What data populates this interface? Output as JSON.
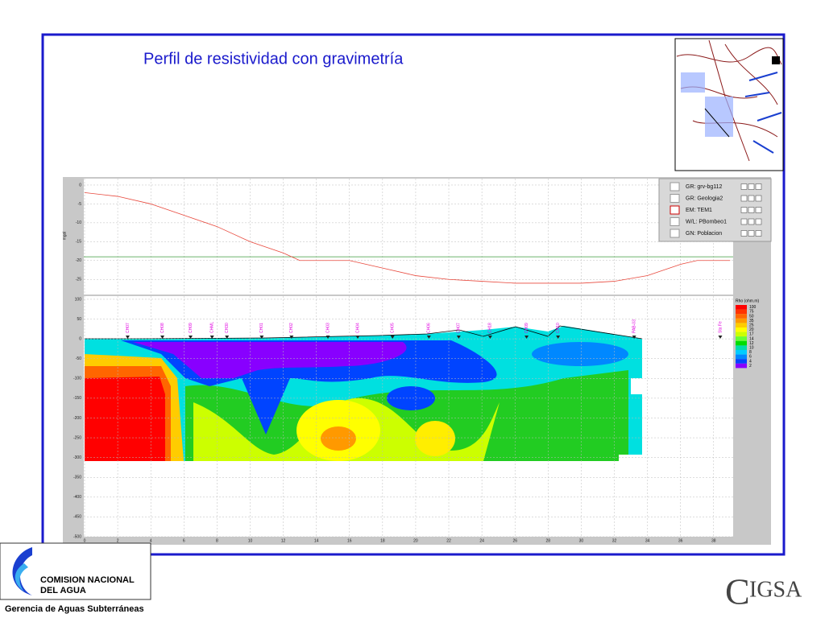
{
  "slide": {
    "title": "Perfil de resistividad con gravimetría"
  },
  "gravity": {
    "y_label": "mgal",
    "ylim": [
      -29,
      1.7
    ],
    "yticks": [
      0,
      -5,
      -10,
      -15,
      -20,
      -25
    ],
    "x": [
      0,
      2,
      4,
      6,
      8,
      10,
      12,
      13,
      14,
      16,
      18,
      20,
      22,
      24,
      26,
      28,
      30,
      32,
      34,
      36,
      37,
      38,
      39
    ],
    "values": [
      -2,
      -3,
      -5,
      -8,
      -11,
      -15,
      -18,
      -20,
      -20,
      -20,
      -22,
      -24,
      -25,
      -25.5,
      -26,
      -26,
      -26,
      -25.5,
      -24,
      -21,
      -20,
      -20,
      -20
    ],
    "color": "#e8483c",
    "reference": -19,
    "reference_color": "#3a9a3a"
  },
  "section": {
    "ylim": [
      -500,
      108
    ],
    "yticks": [
      100,
      50,
      0,
      -50,
      -100,
      -150,
      -200,
      -250,
      -300,
      -350,
      -400,
      -450,
      -500
    ],
    "xlim": [
      0,
      39.3
    ],
    "xticks": [
      0,
      2,
      4,
      6,
      8,
      10,
      12,
      14,
      16,
      18,
      20,
      22,
      24,
      26,
      28,
      30,
      32,
      34,
      36,
      38
    ],
    "stations": [
      {
        "label": "CH07",
        "x": 2.6
      },
      {
        "label": "CH08",
        "x": 4.7
      },
      {
        "label": "CH09",
        "x": 6.4
      },
      {
        "label": "CHML",
        "x": 7.7
      },
      {
        "label": "CH30",
        "x": 8.6
      },
      {
        "label": "CH01",
        "x": 10.7
      },
      {
        "label": "CH02",
        "x": 12.5
      },
      {
        "label": "CH03",
        "x": 14.7
      },
      {
        "label": "CH04",
        "x": 16.5
      },
      {
        "label": "CH05",
        "x": 18.6
      },
      {
        "label": "CH06",
        "x": 20.8
      },
      {
        "label": "CH07",
        "x": 22.6
      },
      {
        "label": "CH18",
        "x": 24.5
      },
      {
        "label": "CH09",
        "x": 26.7
      },
      {
        "label": "CH10",
        "x": 28.6
      },
      {
        "label": "PAB-03",
        "x": 33.2
      },
      {
        "label": "Sta Fe",
        "x": 38.4
      }
    ]
  },
  "layers": [
    "GR: grv-bg112",
    "GR: Geologia2",
    "EM: TEM1",
    "W/L: PBombeo1",
    "GN: Poblacion"
  ],
  "scale": {
    "title": "Rho (ohm.m)",
    "labels": [
      100,
      75,
      50,
      35,
      25,
      20,
      17,
      14,
      12,
      10,
      8,
      6,
      4,
      2
    ],
    "colors": [
      "#ff0000",
      "#ff3300",
      "#ff6600",
      "#ff9900",
      "#ffcc00",
      "#ffff00",
      "#ccff00",
      "#66ff33",
      "#00dd00",
      "#00ddaa",
      "#00ccff",
      "#0088ff",
      "#0044ff",
      "#8800ff"
    ]
  },
  "logos": {
    "conagua": [
      "COMISION NACIONAL",
      "DEL  AGUA"
    ],
    "subtitle": "Gerencia de Aguas Subterráneas",
    "cigsa": "IGSA"
  }
}
